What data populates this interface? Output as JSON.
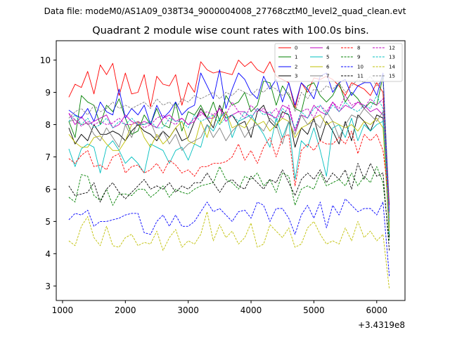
{
  "chart_data": {
    "type": "line",
    "suptitle": "Data file: modeM0/AS1A09_038T34_9000004008_27768cztM0_level2_quad_clean.evt",
    "title": "Quadrant 2 module wise count rates with 100.0s bins.",
    "xlabel": "",
    "ylabel": "",
    "x_offset_label": "+3.4319e8",
    "xlim": [
      900,
      6450
    ],
    "ylim": [
      2.55,
      10.6
    ],
    "xticks": [
      1000,
      2000,
      3000,
      4000,
      5000,
      6000
    ],
    "yticks": [
      3,
      4,
      5,
      6,
      7,
      8,
      9,
      10
    ],
    "legend_position": "top-right",
    "legend_columns": 4,
    "x": [
      1100,
      1200,
      1300,
      1400,
      1500,
      1600,
      1700,
      1800,
      1900,
      2000,
      2100,
      2200,
      2300,
      2400,
      2500,
      2600,
      2700,
      2800,
      2900,
      3000,
      3100,
      3200,
      3300,
      3400,
      3500,
      3600,
      3700,
      3800,
      3900,
      4000,
      4100,
      4200,
      4300,
      4400,
      4500,
      4600,
      4700,
      4800,
      4900,
      5000,
      5100,
      5200,
      5300,
      5400,
      5500,
      5600,
      5700,
      5800,
      5900,
      6000,
      6100,
      6200
    ],
    "series": [
      {
        "name": "0",
        "color": "#ff0000",
        "dash": "solid",
        "values": [
          8.85,
          9.25,
          9.15,
          9.65,
          8.95,
          9.85,
          9.55,
          9.9,
          8.9,
          9.6,
          8.95,
          9.0,
          9.55,
          8.55,
          9.5,
          9.25,
          9.2,
          9.55,
          8.6,
          9.3,
          9.0,
          9.95,
          9.7,
          9.6,
          9.65,
          9.6,
          9.55,
          10.0,
          9.8,
          9.95,
          9.7,
          9.6,
          9.95,
          9.5,
          9.4,
          9.3,
          8.5,
          9.3,
          9.0,
          9.45,
          9.4,
          9.5,
          9.4,
          9.2,
          8.9,
          9.3,
          9.2,
          9.1,
          8.9,
          9.3,
          9.0,
          5.5
        ]
      },
      {
        "name": "1",
        "color": "#008000",
        "dash": "solid",
        "values": [
          8.1,
          7.6,
          8.9,
          8.7,
          8.6,
          8.0,
          8.6,
          8.4,
          8.8,
          8.2,
          7.7,
          7.8,
          8.3,
          8.0,
          8.5,
          8.0,
          7.9,
          8.7,
          7.8,
          8.4,
          8.3,
          8.6,
          8.2,
          8.7,
          8.1,
          8.9,
          8.6,
          8.7,
          9.0,
          8.4,
          8.6,
          9.35,
          9.3,
          8.6,
          9.2,
          8.9,
          8.5,
          8.4,
          9.2,
          9.3,
          8.9,
          8.7,
          8.9,
          9.3,
          8.7,
          9.0,
          8.8,
          8.5,
          8.7,
          8.6,
          9.5,
          4.8
        ]
      },
      {
        "name": "2",
        "color": "#0000ff",
        "dash": "solid",
        "values": [
          8.45,
          8.3,
          8.2,
          8.5,
          8.1,
          8.7,
          8.4,
          8.3,
          9.1,
          8.2,
          8.5,
          8.3,
          8.6,
          8.0,
          8.6,
          8.2,
          8.4,
          8.7,
          8.3,
          8.5,
          8.6,
          9.6,
          9.2,
          8.8,
          9.7,
          8.5,
          9.1,
          9.6,
          9.4,
          9.0,
          8.8,
          9.5,
          9.1,
          9.4,
          8.7,
          9.3,
          8.6,
          9.3,
          9.1,
          8.8,
          9.5,
          9.6,
          9.0,
          9.3,
          9.4,
          8.9,
          9.2,
          9.3,
          9.3,
          8.9,
          9.6,
          5.3
        ]
      },
      {
        "name": "3",
        "color": "#000000",
        "dash": "solid",
        "values": [
          7.9,
          7.4,
          7.7,
          7.5,
          8.0,
          7.7,
          7.7,
          7.8,
          7.7,
          7.5,
          7.8,
          8.0,
          7.8,
          7.7,
          7.5,
          7.8,
          7.6,
          7.9,
          7.5,
          7.6,
          8.1,
          8.5,
          8.2,
          7.9,
          8.6,
          8.2,
          8.3,
          8.0,
          8.1,
          7.6,
          8.4,
          8.6,
          8.1,
          7.9,
          8.4,
          8.3,
          7.3,
          7.9,
          7.7,
          8.2,
          7.5,
          8.1,
          7.8,
          7.4,
          8.1,
          7.5,
          8.3,
          8.1,
          7.8,
          8.3,
          8.2,
          4.5
        ]
      },
      {
        "name": "4",
        "color": "#bf00bf",
        "dash": "solid",
        "values": [
          8.35,
          8.0,
          8.25,
          8.0,
          8.1,
          8.2,
          8.3,
          7.9,
          8.0,
          8.3,
          8.1,
          8.0,
          8.1,
          8.0,
          7.9,
          8.2,
          8.3,
          8.1,
          8.2,
          8.0,
          8.1,
          8.4,
          8.2,
          8.2,
          8.5,
          8.1,
          8.3,
          8.4,
          8.4,
          8.2,
          8.5,
          8.4,
          8.3,
          8.2,
          8.6,
          8.5,
          7.8,
          8.3,
          8.2,
          8.6,
          8.4,
          8.3,
          8.7,
          8.4,
          8.6,
          8.5,
          8.7,
          8.6,
          8.4,
          8.5,
          8.3,
          5.0
        ]
      },
      {
        "name": "5",
        "color": "#00bfbf",
        "dash": "solid",
        "values": [
          7.25,
          6.7,
          7.25,
          7.4,
          7.3,
          6.5,
          7.3,
          7.5,
          7.2,
          6.8,
          7.0,
          6.8,
          6.5,
          7.4,
          7.3,
          7.2,
          6.8,
          7.2,
          7.3,
          6.9,
          7.4,
          7.3,
          8.0,
          7.8,
          8.2,
          8.4,
          7.6,
          8.1,
          8.2,
          8.3,
          8.0,
          7.7,
          7.3,
          8.2,
          7.6,
          8.1,
          6.3,
          7.5,
          7.3,
          7.9,
          7.2,
          6.4,
          7.9,
          8.0,
          7.6,
          8.2,
          7.5,
          8.0,
          7.8,
          8.0,
          8.1,
          4.6
        ]
      },
      {
        "name": "6",
        "color": "#bfbf00",
        "dash": "solid",
        "values": [
          7.7,
          7.45,
          7.3,
          7.3,
          7.6,
          7.65,
          7.4,
          7.2,
          7.2,
          7.5,
          8.0,
          8.1,
          7.6,
          7.3,
          7.7,
          7.4,
          7.6,
          7.9,
          8.1,
          7.5,
          7.4,
          8.1,
          7.6,
          8.3,
          8.0,
          8.4,
          7.9,
          8.0,
          7.9,
          8.2,
          8.0,
          8.1,
          7.8,
          8.0,
          8.2,
          8.1,
          7.6,
          7.9,
          8.0,
          8.2,
          8.3,
          8.0,
          8.1,
          8.0,
          7.9,
          8.0,
          7.8,
          8.1,
          8.0,
          8.2,
          7.9,
          4.7
        ]
      },
      {
        "name": "7",
        "color": "#808080",
        "dash": "solid",
        "values": [
          8.1,
          8.15,
          8.0,
          8.05,
          7.7,
          7.5,
          7.9,
          7.6,
          7.3,
          8.0,
          7.6,
          8.1,
          8.0,
          8.1,
          7.6,
          7.8,
          7.4,
          7.7,
          7.2,
          7.4,
          7.5,
          7.6,
          8.0,
          7.6,
          7.9,
          7.5,
          7.8,
          8.0,
          7.6,
          7.9,
          8.0,
          7.8,
          8.2,
          8.0,
          7.4,
          8.1,
          7.7,
          8.3,
          8.0,
          8.1,
          7.9,
          8.4,
          8.1,
          7.6,
          8.0,
          8.3,
          8.2,
          8.5,
          8.3,
          8.1,
          8.4,
          5.1
        ]
      },
      {
        "name": "8",
        "color": "#ff0000",
        "dash": "dash",
        "values": [
          6.95,
          6.8,
          7.05,
          7.2,
          6.7,
          6.75,
          6.6,
          7.0,
          7.1,
          6.5,
          6.7,
          6.75,
          6.5,
          6.6,
          6.8,
          6.5,
          6.9,
          6.75,
          6.5,
          6.6,
          6.4,
          6.7,
          6.7,
          6.8,
          6.8,
          6.85,
          7.0,
          7.4,
          6.9,
          7.2,
          6.8,
          7.3,
          7.6,
          7.0,
          7.6,
          7.7,
          6.1,
          7.2,
          7.4,
          7.2,
          7.5,
          7.4,
          7.4,
          7.6,
          7.4,
          7.8,
          7.1,
          7.7,
          7.5,
          7.7,
          7.2,
          5.6
        ]
      },
      {
        "name": "9",
        "color": "#008000",
        "dash": "dash",
        "values": [
          5.75,
          5.6,
          6.45,
          6.4,
          5.8,
          5.65,
          6.0,
          5.5,
          5.85,
          5.85,
          5.8,
          6.0,
          6.0,
          5.75,
          5.9,
          6.1,
          5.75,
          6.0,
          5.9,
          5.85,
          6.0,
          6.1,
          6.15,
          6.2,
          6.7,
          6.3,
          6.2,
          6.0,
          6.4,
          6.3,
          6.5,
          6.1,
          6.3,
          5.9,
          6.5,
          6.4,
          5.5,
          6.0,
          6.1,
          6.0,
          6.5,
          6.1,
          6.2,
          6.3,
          6.1,
          6.5,
          6.1,
          6.4,
          6.2,
          6.7,
          6.2,
          4.4
        ]
      },
      {
        "name": "10",
        "color": "#0000ff",
        "dash": "dash",
        "values": [
          5.05,
          5.25,
          5.2,
          5.35,
          4.85,
          5.0,
          5.0,
          5.05,
          5.1,
          5.2,
          5.25,
          5.25,
          4.65,
          4.6,
          5.0,
          5.2,
          4.85,
          5.2,
          4.85,
          4.85,
          5.0,
          5.3,
          5.6,
          5.3,
          5.4,
          5.2,
          5.0,
          5.3,
          5.35,
          5.1,
          5.6,
          5.5,
          5.0,
          5.4,
          5.4,
          5.1,
          4.6,
          5.2,
          5.5,
          5.1,
          5.6,
          4.8,
          5.5,
          5.2,
          5.7,
          5.5,
          5.3,
          5.4,
          5.4,
          5.2,
          5.6,
          3.3
        ]
      },
      {
        "name": "11",
        "color": "#000000",
        "dash": "dash",
        "values": [
          6.1,
          5.8,
          5.85,
          5.9,
          6.2,
          5.6,
          6.0,
          6.2,
          5.9,
          5.7,
          5.9,
          6.1,
          6.3,
          6.0,
          6.1,
          6.0,
          6.2,
          5.9,
          6.1,
          6.0,
          6.2,
          6.2,
          6.5,
          6.2,
          5.9,
          6.2,
          6.3,
          6.1,
          6.0,
          6.4,
          6.2,
          6.0,
          6.3,
          6.2,
          6.6,
          6.2,
          5.8,
          6.3,
          6.5,
          6.3,
          6.6,
          6.2,
          6.5,
          6.3,
          6.6,
          6.0,
          6.8,
          6.3,
          6.8,
          6.4,
          6.5,
          4.1
        ]
      },
      {
        "name": "12",
        "color": "#bf00bf",
        "dash": "dash",
        "values": [
          8.35,
          8.15,
          7.95,
          8.1,
          8.0,
          8.1,
          8.0,
          8.05,
          8.2,
          8.0,
          8.0,
          8.1,
          7.9,
          8.0,
          8.2,
          8.3,
          8.1,
          8.0,
          8.2,
          8.0,
          8.2,
          8.3,
          8.4,
          8.3,
          8.5,
          8.3,
          8.7,
          8.4,
          8.2,
          8.6,
          8.4,
          8.5,
          8.3,
          8.5,
          8.2,
          8.6,
          7.8,
          8.4,
          8.5,
          8.2,
          8.6,
          8.4,
          8.7,
          8.5,
          8.9,
          8.6,
          8.7,
          8.5,
          8.8,
          8.6,
          8.8,
          5.2
        ]
      },
      {
        "name": "13",
        "color": "#00bfbf",
        "dash": "dash",
        "values": [
          8.1,
          8.3,
          8.0,
          8.2,
          7.9,
          8.0,
          8.2,
          7.9,
          8.1,
          8.0,
          8.2,
          8.0,
          8.0,
          8.1,
          7.9,
          7.9,
          8.2,
          8.1,
          8.1,
          7.9,
          8.3,
          8.1,
          8.2,
          8.3,
          8.0,
          8.2,
          8.3,
          8.1,
          8.4,
          8.2,
          8.5,
          8.3,
          8.4,
          8.1,
          8.5,
          8.3,
          7.9,
          8.4,
          8.2,
          8.5,
          8.6,
          8.3,
          8.6,
          8.4,
          8.7,
          8.5,
          8.4,
          8.6,
          8.5,
          8.9,
          8.5,
          5.0
        ]
      },
      {
        "name": "14",
        "color": "#bfbf00",
        "dash": "dash",
        "values": [
          4.4,
          4.25,
          4.85,
          5.15,
          4.5,
          4.25,
          4.85,
          4.25,
          4.2,
          4.5,
          4.6,
          4.25,
          4.35,
          4.3,
          4.7,
          4.1,
          4.5,
          4.75,
          4.2,
          4.4,
          4.3,
          4.6,
          5.3,
          4.4,
          4.9,
          4.5,
          4.7,
          4.3,
          4.5,
          4.95,
          4.2,
          4.3,
          4.9,
          4.7,
          4.5,
          4.8,
          4.2,
          4.3,
          4.8,
          5.0,
          4.6,
          4.3,
          4.4,
          4.3,
          4.8,
          4.4,
          5.0,
          4.5,
          4.7,
          4.4,
          4.6,
          2.9
        ]
      },
      {
        "name": "15",
        "color": "#808080",
        "dash": "dash",
        "values": [
          8.2,
          8.4,
          8.5,
          8.3,
          8.6,
          8.4,
          8.5,
          8.7,
          8.5,
          8.6,
          8.5,
          8.6,
          8.7,
          8.5,
          8.8,
          8.6,
          8.7,
          8.5,
          8.8,
          8.7,
          8.9,
          8.8,
          8.9,
          9.0,
          8.8,
          9.0,
          8.9,
          9.1,
          9.0,
          8.9,
          9.1,
          9.0,
          9.2,
          9.1,
          8.9,
          9.0,
          8.4,
          9.0,
          8.8,
          9.1,
          9.0,
          9.2,
          9.1,
          9.3,
          9.0,
          9.2,
          9.4,
          9.3,
          9.5,
          9.2,
          9.4,
          5.6
        ]
      }
    ]
  }
}
